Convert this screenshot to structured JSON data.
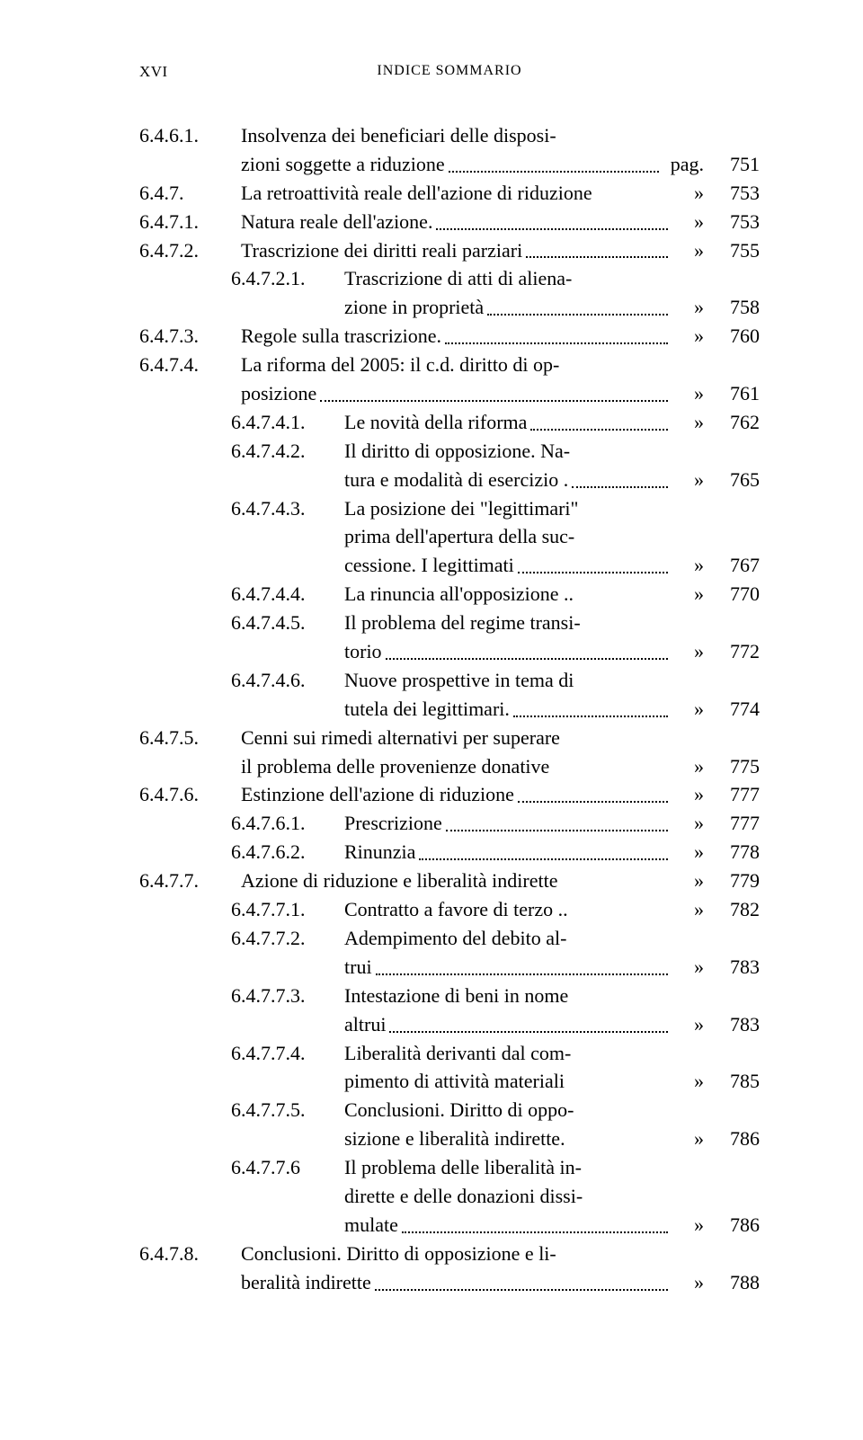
{
  "header": {
    "page_num": "XVI",
    "title": "INDICE SOMMARIO"
  },
  "rows": [
    {
      "num": "6.4.6.1.",
      "numIndent": 0,
      "lines": [
        "Insolvenza dei beneficiari delle disposi-",
        "zioni soggette a riduzione"
      ],
      "sym": "pag.",
      "pg": "751",
      "textIndent": 0
    },
    {
      "num": "6.4.7.",
      "numIndent": 0,
      "lines": [
        "La retroattività reale dell'azione di riduzione"
      ],
      "sym": "»",
      "pg": "753",
      "textIndent": 0,
      "noLeader": true
    },
    {
      "num": "6.4.7.1.",
      "numIndent": 0,
      "lines": [
        "Natura reale dell'azione."
      ],
      "sym": "»",
      "pg": "753",
      "textIndent": 0
    },
    {
      "num": "6.4.7.2.",
      "numIndent": 0,
      "lines": [
        "Trascrizione dei diritti reali parziari"
      ],
      "sym": "»",
      "pg": "755",
      "textIndent": 0
    },
    {
      "num": "6.4.7.2.1.",
      "numIndent": 1,
      "lines": [
        "Trascrizione di atti di aliena-",
        "zione in proprietà"
      ],
      "sym": "»",
      "pg": "758",
      "textIndent": 1
    },
    {
      "num": "6.4.7.3.",
      "numIndent": 0,
      "lines": [
        "Regole sulla trascrizione."
      ],
      "sym": "»",
      "pg": "760",
      "textIndent": 0
    },
    {
      "num": "6.4.7.4.",
      "numIndent": 0,
      "lines": [
        "La riforma del 2005: il c.d. diritto di op-",
        "posizione"
      ],
      "sym": "»",
      "pg": "761",
      "textIndent": 0
    },
    {
      "num": "6.4.7.4.1.",
      "numIndent": 1,
      "lines": [
        "Le novità della riforma"
      ],
      "sym": "»",
      "pg": "762",
      "textIndent": 1
    },
    {
      "num": "6.4.7.4.2.",
      "numIndent": 1,
      "lines": [
        "Il diritto di opposizione. Na-",
        "tura e modalità di esercizio ."
      ],
      "sym": "»",
      "pg": "765",
      "textIndent": 1
    },
    {
      "num": "6.4.7.4.3.",
      "numIndent": 1,
      "lines": [
        "La posizione dei \"legittimari\"",
        "prima dell'apertura della suc-",
        "cessione. I legittimati"
      ],
      "sym": "»",
      "pg": "767",
      "textIndent": 1
    },
    {
      "num": "6.4.7.4.4.",
      "numIndent": 1,
      "lines": [
        "La rinuncia all'opposizione .."
      ],
      "sym": "»",
      "pg": "770",
      "textIndent": 1,
      "noLeader": true
    },
    {
      "num": "6.4.7.4.5.",
      "numIndent": 1,
      "lines": [
        "Il problema del regime transi-",
        "torio"
      ],
      "sym": "»",
      "pg": "772",
      "textIndent": 1
    },
    {
      "num": "6.4.7.4.6.",
      "numIndent": 1,
      "lines": [
        "Nuove prospettive in tema di",
        "tutela dei legittimari."
      ],
      "sym": "»",
      "pg": "774",
      "textIndent": 1
    },
    {
      "num": "6.4.7.5.",
      "numIndent": 0,
      "lines": [
        "Cenni sui rimedi alternativi per superare",
        "il problema delle provenienze donative"
      ],
      "sym": "»",
      "pg": "775",
      "textIndent": 0,
      "noLeader": true
    },
    {
      "num": "6.4.7.6.",
      "numIndent": 0,
      "lines": [
        "Estinzione dell'azione di riduzione"
      ],
      "sym": "»",
      "pg": "777",
      "textIndent": 0
    },
    {
      "num": "6.4.7.6.1.",
      "numIndent": 1,
      "lines": [
        "Prescrizione"
      ],
      "sym": "»",
      "pg": "777",
      "textIndent": 1
    },
    {
      "num": "6.4.7.6.2.",
      "numIndent": 1,
      "lines": [
        "Rinunzia"
      ],
      "sym": "»",
      "pg": "778",
      "textIndent": 1
    },
    {
      "num": "6.4.7.7.",
      "numIndent": 0,
      "lines": [
        "Azione di riduzione e liberalità indirette"
      ],
      "sym": "»",
      "pg": "779",
      "textIndent": 0,
      "noLeader": true
    },
    {
      "num": "6.4.7.7.1.",
      "numIndent": 1,
      "lines": [
        "Contratto a favore di terzo .."
      ],
      "sym": "»",
      "pg": "782",
      "textIndent": 1,
      "noLeader": true
    },
    {
      "num": "6.4.7.7.2.",
      "numIndent": 1,
      "lines": [
        "Adempimento del debito al-",
        "trui"
      ],
      "sym": "»",
      "pg": "783",
      "textIndent": 1
    },
    {
      "num": "6.4.7.7.3.",
      "numIndent": 1,
      "lines": [
        "Intestazione di beni in nome",
        "altrui"
      ],
      "sym": "»",
      "pg": "783",
      "textIndent": 1
    },
    {
      "num": "6.4.7.7.4.",
      "numIndent": 1,
      "lines": [
        "Liberalità derivanti dal com-",
        "pimento di attività materiali"
      ],
      "sym": "»",
      "pg": "785",
      "textIndent": 1,
      "noLeader": true
    },
    {
      "num": "6.4.7.7.5.",
      "numIndent": 1,
      "lines": [
        "Conclusioni. Diritto di oppo-",
        "sizione e liberalità indirette."
      ],
      "sym": "»",
      "pg": "786",
      "textIndent": 1,
      "noLeader": true
    },
    {
      "num": "6.4.7.7.6",
      "numIndent": 1,
      "lines": [
        "Il problema delle liberalità in-",
        "dirette e delle donazioni dissi-",
        "mulate"
      ],
      "sym": "»",
      "pg": "786",
      "textIndent": 1
    },
    {
      "num": "6.4.7.8.",
      "numIndent": 0,
      "lines": [
        "Conclusioni. Diritto di opposizione e li-",
        "beralità indirette"
      ],
      "sym": "»",
      "pg": "788",
      "textIndent": 0
    }
  ],
  "style": {
    "numCol0Width": 95,
    "numCol1Width": 108,
    "hangCol0": 95,
    "hangCol1": 108
  }
}
